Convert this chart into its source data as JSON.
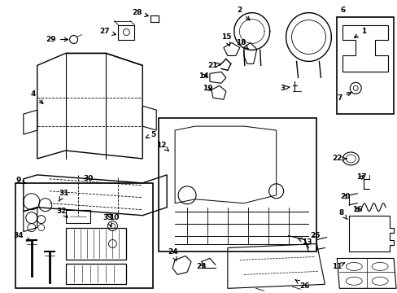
{
  "background_color": "#ffffff",
  "line_color": "#000000",
  "label_fontsize": 6.5,
  "figsize": [
    4.89,
    3.6
  ],
  "dpi": 100
}
